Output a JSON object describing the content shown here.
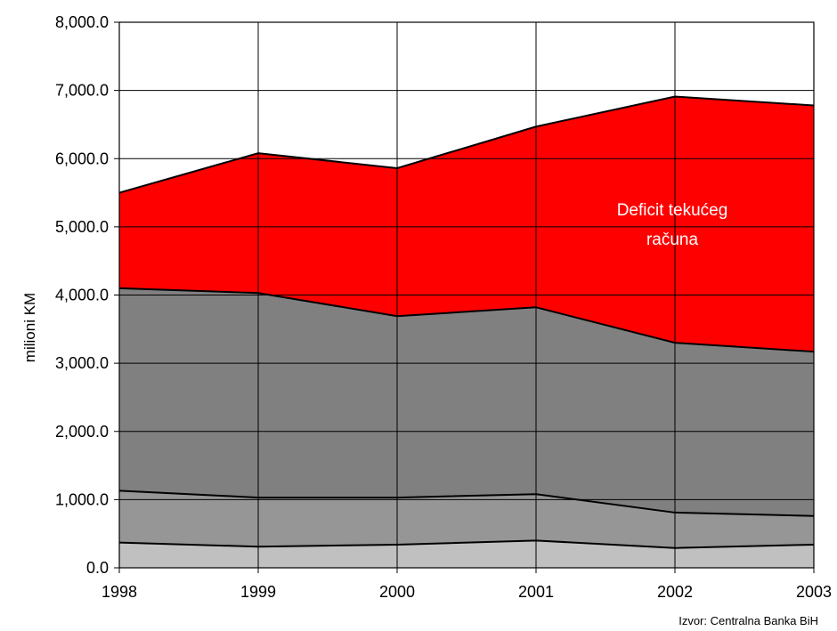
{
  "chart_data": {
    "type": "area",
    "stacked": true,
    "x": [
      "1998",
      "1999",
      "2000",
      "2001",
      "2002",
      "2003"
    ],
    "ylabel": "milioni KM",
    "ylim": [
      0,
      8000
    ],
    "yticks": [
      "0.0",
      "1,000.0",
      "2,000.0",
      "3,000.0",
      "4,000.0",
      "5,000.0",
      "6,000.0",
      "7,000.0",
      "8,000.0"
    ],
    "grid": true,
    "legend": "none",
    "series": [
      {
        "color": "#c0c0c0",
        "values": [
          370,
          310,
          340,
          400,
          290,
          340
        ]
      },
      {
        "color": "#969696",
        "values": [
          760,
          720,
          690,
          680,
          520,
          420
        ]
      },
      {
        "color": "#808080",
        "values": [
          2970,
          3000,
          2660,
          2740,
          2490,
          2410
        ]
      },
      {
        "name": "Deficit tekućeg računa",
        "color": "#ff0000",
        "values": [
          1400,
          2050,
          2170,
          2650,
          3610,
          3610
        ]
      }
    ],
    "annotations": [
      {
        "text_lines": [
          "Deficit tekućeg",
          "računa"
        ],
        "x": "2002",
        "y": 5170
      }
    ],
    "source": "Izvor: Centralna Banka BiH"
  }
}
